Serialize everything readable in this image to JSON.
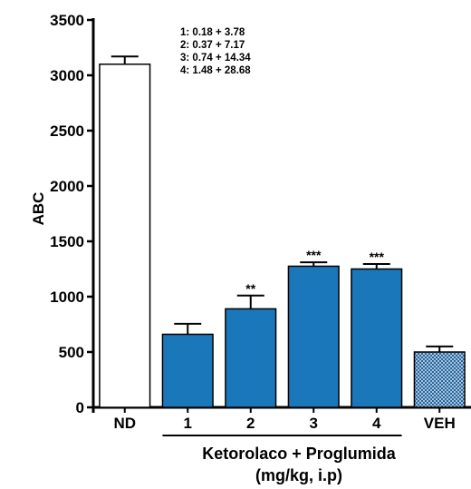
{
  "chart_data": {
    "type": "bar",
    "categories": [
      "ND",
      "1",
      "2",
      "3",
      "4",
      "VEH"
    ],
    "values": [
      3100,
      660,
      890,
      1275,
      1250,
      500
    ],
    "errors": [
      70,
      95,
      120,
      35,
      45,
      50
    ],
    "significance": [
      "",
      "",
      "**",
      "***",
      "***",
      ""
    ],
    "bar_styles": [
      "white",
      "blue",
      "blue",
      "blue",
      "blue",
      "hatched"
    ],
    "ylabel": "ABC",
    "xlabel_lines": [
      "Ketorolaco + Proglumida",
      "(mg/kg, i.p)"
    ],
    "ylim": [
      0,
      3500
    ],
    "yticks": [
      0,
      500,
      1000,
      1500,
      2000,
      2500,
      3000,
      3500
    ],
    "annotations": [
      "1: 0.18 + 3.78",
      "2: 0.37 + 7.17",
      "3: 0.74 + 14.34",
      "4: 1.48 + 28.68"
    ],
    "grouped_categories": [
      "1",
      "2",
      "3",
      "4"
    ],
    "colors": {
      "blue": "#1a77b9",
      "white": "#ffffff",
      "hatch": "#1a5f9a"
    },
    "legend": "none",
    "grid": false
  }
}
